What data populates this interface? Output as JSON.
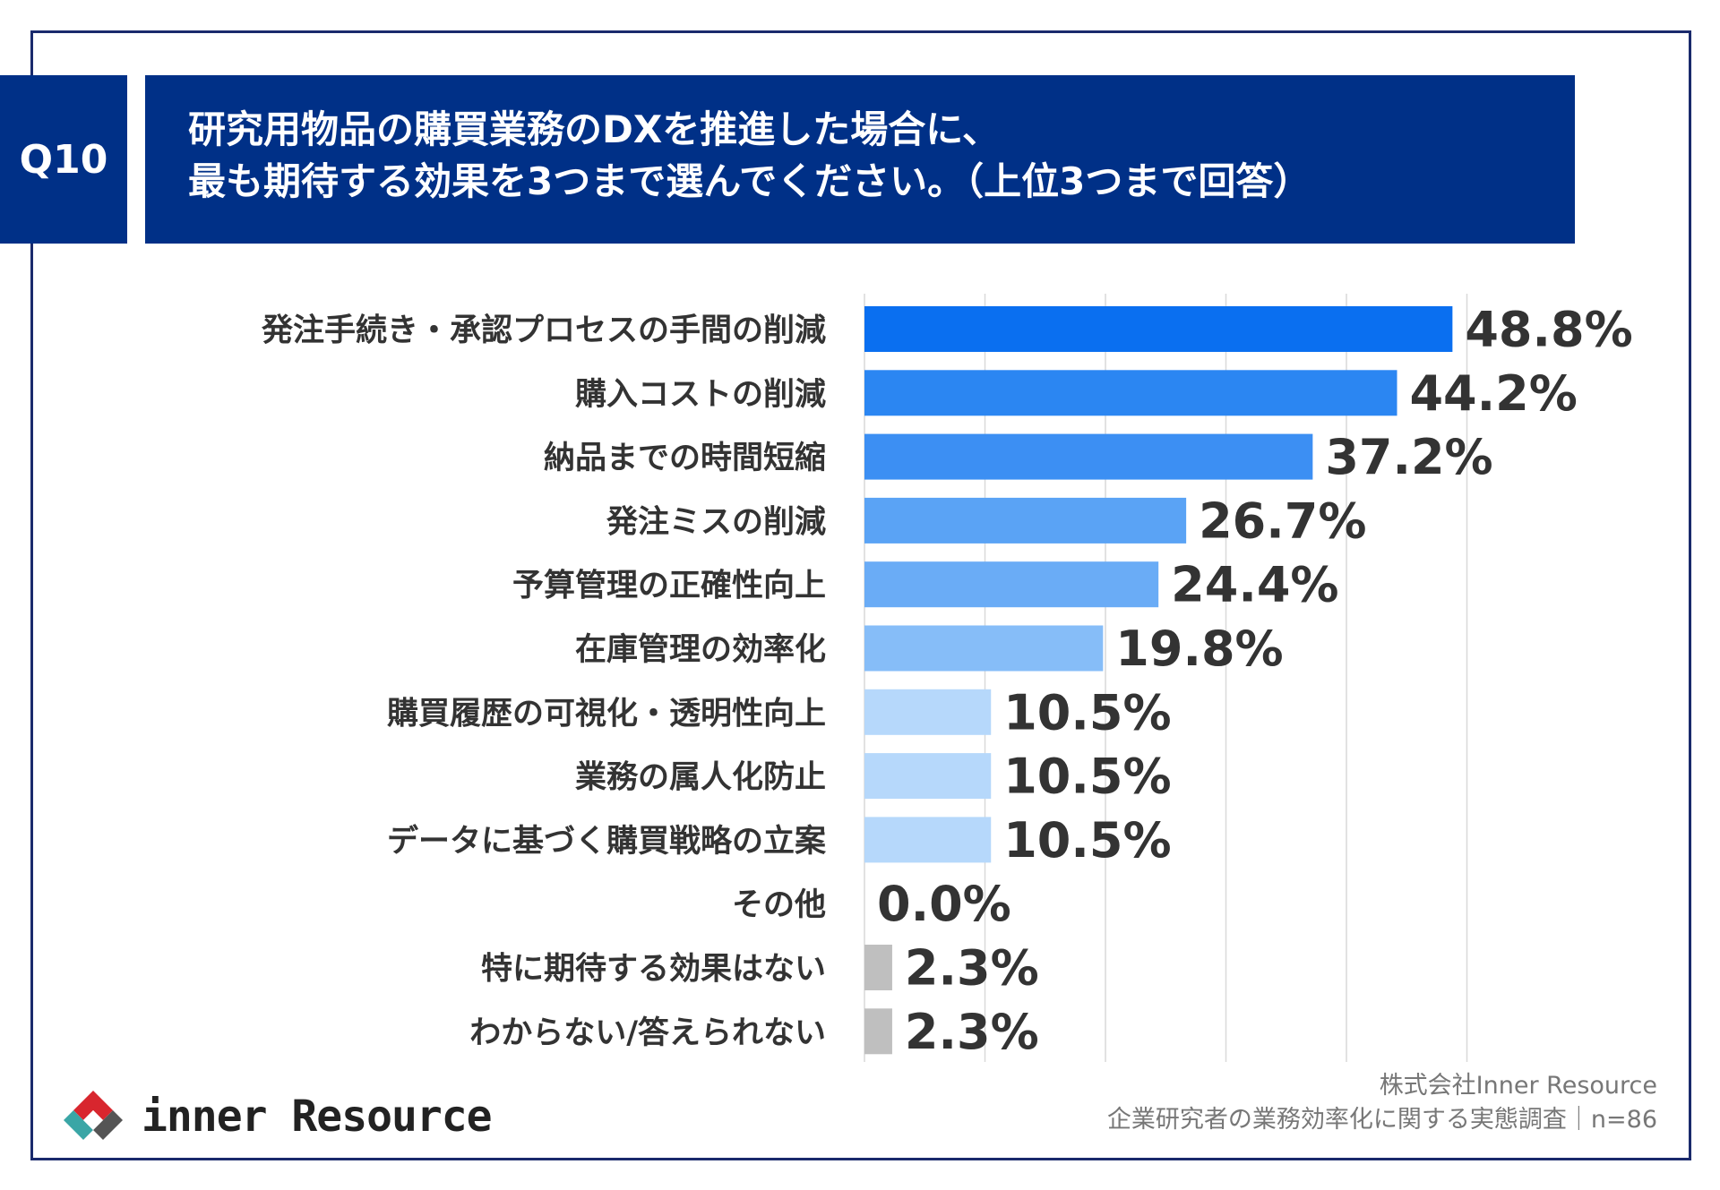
{
  "header": {
    "badge": "Q10",
    "title_line1": "研究用物品の購買業務のDXを推進した場合に、",
    "title_line2": "最も期待する効果を3つまで選んでください。（上位3つまで回答）"
  },
  "chart_data": {
    "type": "bar",
    "orientation": "horizontal",
    "categories": [
      "発注手続き・承認プロセスの手間の削減",
      "購入コストの削減",
      "納品までの時間短縮",
      "発注ミスの削減",
      "予算管理の正確性向上",
      "在庫管理の効率化",
      "購買履歴の可視化・透明性向上",
      "業務の属人化防止",
      "データに基づく購買戦略の立案",
      "その他",
      "特に期待する効果はない",
      "わからない/答えられない"
    ],
    "values": [
      48.8,
      44.2,
      37.2,
      26.7,
      24.4,
      19.8,
      10.5,
      10.5,
      10.5,
      0.0,
      2.3,
      2.3
    ],
    "value_labels": [
      "48.8%",
      "44.2%",
      "37.2%",
      "26.7%",
      "24.4%",
      "19.8%",
      "10.5%",
      "10.5%",
      "10.5%",
      "0.0%",
      "2.3%",
      "2.3%"
    ],
    "colors": [
      "#0a6ff0",
      "#2b86f2",
      "#3c8ff3",
      "#5aa3f5",
      "#6aacf6",
      "#86bdf8",
      "#b6d8fb",
      "#b6d8fb",
      "#b6d8fb",
      "#b6d8fb",
      "#bfbfbf",
      "#bfbfbf"
    ],
    "xlim": [
      0,
      50
    ],
    "grid": true,
    "value_unit": "%"
  },
  "footer": {
    "logo_text": "inner Resource",
    "credit_line1": "株式会社Inner Resource",
    "credit_line2": "企業研究者の業務効率化に関する実態調査｜n=86"
  },
  "colors": {
    "brand_navy": "#003087",
    "frame_navy": "#1a2a6c"
  }
}
